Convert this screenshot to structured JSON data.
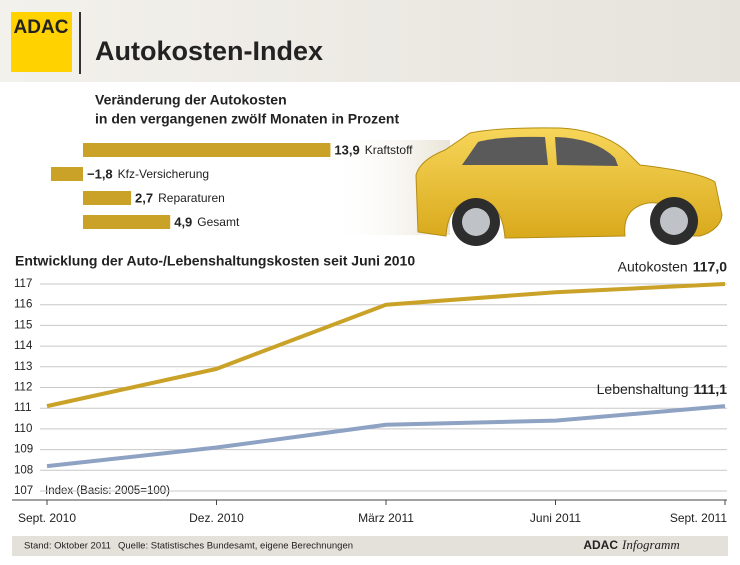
{
  "header": {
    "logo": "ADAC",
    "title": "Autokosten-Index"
  },
  "chart_data": [
    {
      "type": "bar",
      "orientation": "horizontal",
      "title": "Veränderung der Autokosten",
      "subtitle": "in den vergangenen zwölf Monaten in Prozent",
      "categories": [
        "Kraftstoff",
        "Kfz-Versicherung",
        "Reparaturen",
        "Gesamt"
      ],
      "values": [
        13.9,
        -1.8,
        2.7,
        4.9
      ],
      "value_labels": [
        "13,9",
        "−1,8",
        "2,7",
        "4,9"
      ],
      "color": "#c9a227"
    },
    {
      "type": "line",
      "title": "Entwicklung der Auto-/Lebenshaltungskosten seit Juni 2010",
      "categories": [
        "Sept. 2010",
        "Dez. 2010",
        "März 2011",
        "Juni 2011",
        "Sept. 2011"
      ],
      "series": [
        {
          "name": "Autokosten",
          "color": "#c9a227",
          "values": [
            111.1,
            112.9,
            116.0,
            116.6,
            117.0
          ],
          "value_labels": [
            null,
            null,
            null,
            null,
            "117,0"
          ]
        },
        {
          "name": "Lebenshaltung",
          "color": "#8ea2c3",
          "values": [
            108.2,
            109.1,
            110.2,
            110.4,
            111.1
          ],
          "value_labels": [
            null,
            null,
            null,
            null,
            "111,1"
          ]
        }
      ],
      "ylim": [
        107,
        117
      ],
      "yticks": [
        107,
        108,
        109,
        110,
        111,
        112,
        113,
        114,
        115,
        116,
        117
      ],
      "grid": true,
      "annotation": "Index (Basis: 2005=100)"
    }
  ],
  "footer": {
    "date": "Stand: Oktober 2011",
    "source": "Quelle: Statistisches Bundesamt, eigene Berechnungen",
    "brand": "ADAC",
    "brand_suffix": "Infogramm"
  }
}
